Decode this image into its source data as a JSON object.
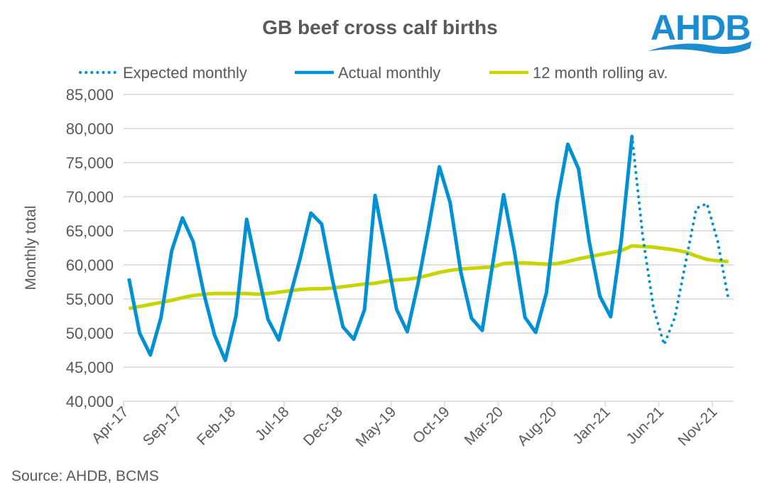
{
  "logo": {
    "text": "AHDB"
  },
  "source": "Source: AHDB, BCMS",
  "colors": {
    "actual": "#0090d4",
    "expected": "#0090d4",
    "rolling": "#c8d400",
    "grid": "#e0e0e0",
    "text": "#595959",
    "logo": "#1a8ccf"
  },
  "chart_data": {
    "type": "line",
    "title": "GB beef cross calf births",
    "xlabel": "",
    "ylabel": "Monthly total",
    "ylim": [
      40000,
      85000
    ],
    "yticks": [
      "40,000",
      "45,000",
      "50,000",
      "55,000",
      "60,000",
      "65,000",
      "70,000",
      "75,000",
      "80,000",
      "85,000"
    ],
    "ytick_values": [
      40000,
      45000,
      50000,
      55000,
      60000,
      65000,
      70000,
      75000,
      80000,
      85000
    ],
    "x_start": "Apr-17",
    "x_months": 57,
    "xticks": [
      "Apr-17",
      "Sep-17",
      "Feb-18",
      "Jul-18",
      "Dec-18",
      "May-19",
      "Oct-19",
      "Mar-20",
      "Aug-20",
      "Jan-21",
      "Jun-21",
      "Nov-21"
    ],
    "xtick_month_index": [
      0,
      5,
      10,
      15,
      20,
      25,
      30,
      35,
      40,
      45,
      50,
      55
    ],
    "grid": true,
    "legend_position": "top",
    "series": [
      {
        "name": "Expected monthly",
        "style": "dotted",
        "start_index": 47,
        "values": [
          78900,
          64200,
          53700,
          48300,
          52300,
          60300,
          68300,
          69000,
          63500,
          55000
        ]
      },
      {
        "name": "Actual monthly",
        "style": "solid",
        "start_index": 0,
        "values": [
          58000,
          50000,
          46800,
          52300,
          62100,
          66900,
          63400,
          55800,
          49700,
          46000,
          52500,
          66700,
          59200,
          52000,
          49000,
          55100,
          61000,
          67600,
          66000,
          57900,
          50900,
          49100,
          53400,
          70200,
          62100,
          53500,
          50200,
          57200,
          65500,
          74400,
          69200,
          59000,
          52200,
          50400,
          60300,
          70300,
          62100,
          52300,
          50100,
          55900,
          69200,
          77700,
          74100,
          63400,
          55400,
          52400,
          63700,
          78900
        ]
      },
      {
        "name": "12 month rolling av.",
        "style": "solid",
        "start_index": 0,
        "values": [
          53600,
          53900,
          54200,
          54500,
          54800,
          55200,
          55500,
          55700,
          55800,
          55800,
          55800,
          55800,
          55700,
          55800,
          56000,
          56200,
          56400,
          56500,
          56500,
          56600,
          56800,
          57000,
          57200,
          57300,
          57600,
          57800,
          57900,
          58100,
          58500,
          58900,
          59200,
          59400,
          59500,
          59600,
          59700,
          60200,
          60300,
          60300,
          60200,
          60100,
          60200,
          60500,
          60900,
          61200,
          61500,
          61800,
          62100,
          62800,
          62700,
          62600,
          62400,
          62200,
          61900,
          61300,
          60800,
          60600,
          60500
        ]
      }
    ]
  }
}
